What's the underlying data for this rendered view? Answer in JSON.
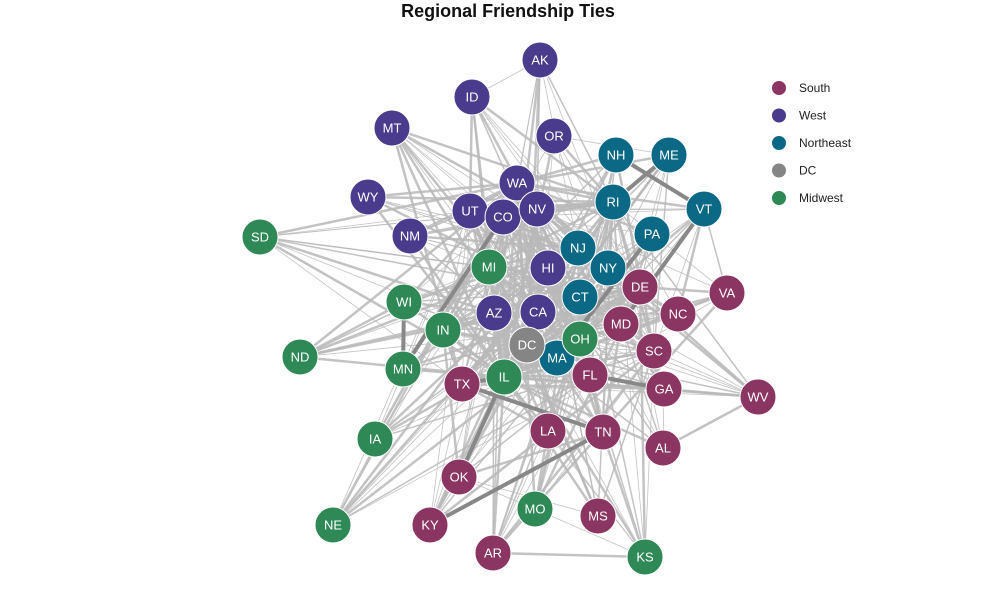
{
  "title": "Regional Friendship Ties",
  "groups": [
    {
      "name": "South",
      "color": "#8b3562",
      "nodes": [
        "FL",
        "TX",
        "GA",
        "NC",
        "VA",
        "MD",
        "DE",
        "SC",
        "AL",
        "TN",
        "LA",
        "OK",
        "KY",
        "AR",
        "MS",
        "WV"
      ]
    },
    {
      "name": "West",
      "color": "#4b3b8c",
      "nodes": [
        "AK",
        "ID",
        "MT",
        "OR",
        "WA",
        "WY",
        "UT",
        "CO",
        "NV",
        "NM",
        "HI",
        "AZ",
        "CA"
      ]
    },
    {
      "name": "Northeast",
      "color": "#0b6985",
      "nodes": [
        "NH",
        "ME",
        "RI",
        "VT",
        "PA",
        "NJ",
        "NY",
        "CT",
        "MA"
      ]
    },
    {
      "name": "DC",
      "color": "#858585",
      "nodes": [
        "DC"
      ]
    },
    {
      "name": "Midwest",
      "color": "#2e8956",
      "nodes": [
        "SD",
        "MI",
        "WI",
        "IN",
        "ND",
        "MN",
        "IL",
        "IA",
        "NE",
        "MO",
        "KS",
        "OH"
      ]
    }
  ]
}
